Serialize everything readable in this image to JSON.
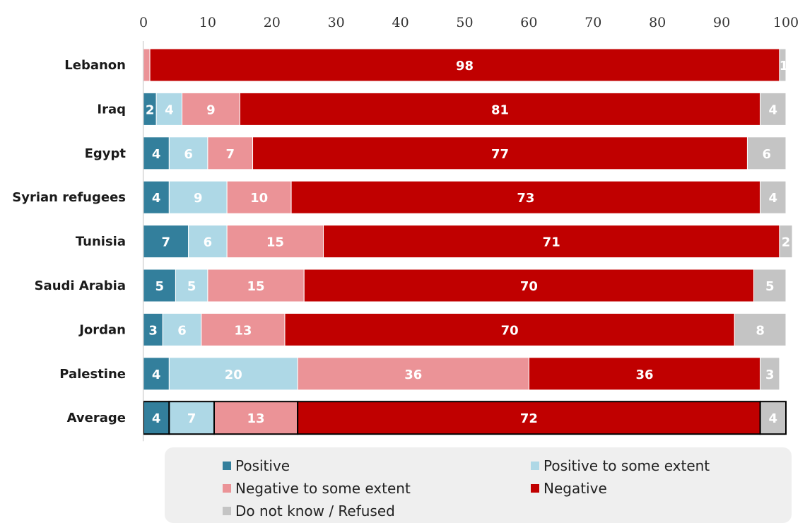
{
  "chart_data": {
    "type": "bar",
    "orientation": "horizontal",
    "stacked": true,
    "title": "",
    "xlabel": "",
    "ylabel": "",
    "xlim": [
      0,
      100
    ],
    "x_ticks": [
      "0",
      "10",
      "20",
      "30",
      "40",
      "50",
      "60",
      "70",
      "80",
      "90",
      "100"
    ],
    "x_axis_position": "top",
    "grid": false,
    "legend_placement": "bottom",
    "categories": [
      "Lebanon",
      "Iraq",
      "Egypt",
      "Syrian refugees",
      "Tunisia",
      "Saudi Arabia",
      "Jordan",
      "Palestine",
      "Average"
    ],
    "highlighted_category": "Average",
    "series": [
      {
        "name": "Positive",
        "color": "#337f9c",
        "label_color": "#ffffff",
        "values": [
          0,
          2,
          4,
          4,
          7,
          5,
          3,
          4,
          4
        ]
      },
      {
        "name": "Positive to some extent",
        "color": "#aed8e6",
        "label_color": "#ffffff",
        "values": [
          0,
          4,
          6,
          9,
          6,
          5,
          6,
          20,
          7
        ]
      },
      {
        "name": "Negative to some extent",
        "color": "#eb9397",
        "label_color": "#ffffff",
        "values": [
          1,
          9,
          7,
          10,
          15,
          15,
          13,
          36,
          13
        ]
      },
      {
        "name": "Negative",
        "color": "#c00000",
        "label_color": "#ffffff",
        "values": [
          98,
          81,
          77,
          73,
          71,
          70,
          70,
          36,
          72
        ]
      },
      {
        "name": "Do not know / Refused",
        "color": "#c4c4c4",
        "label_color": "#ffffff",
        "values": [
          1,
          4,
          6,
          4,
          2,
          5,
          8,
          3,
          4
        ]
      }
    ],
    "legend_order": [
      "Positive",
      "Positive to some extent",
      "Negative to some extent",
      "Negative",
      "Do not know / Refused"
    ]
  }
}
